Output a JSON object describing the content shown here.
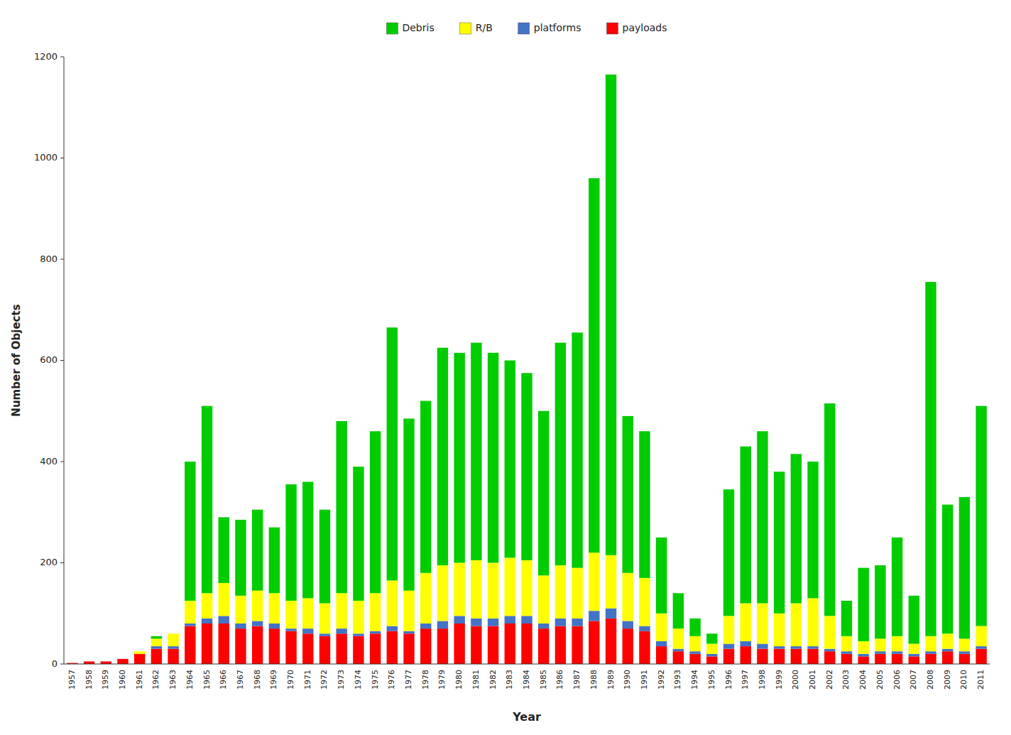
{
  "chart_data": {
    "type": "bar",
    "stacked": true,
    "xlabel": "Year",
    "ylabel": "Number of Objects",
    "categories": [
      "1957",
      "1958",
      "1959",
      "1960",
      "1961",
      "1962",
      "1963",
      "1964",
      "1965",
      "1966",
      "1967",
      "1968",
      "1969",
      "1970",
      "1971",
      "1972",
      "1973",
      "1974",
      "1975",
      "1976",
      "1977",
      "1978",
      "1979",
      "1980",
      "1981",
      "1982",
      "1983",
      "1984",
      "1985",
      "1986",
      "1987",
      "1988",
      "1989",
      "1990",
      "1991",
      "1992",
      "1993",
      "1994",
      "1995",
      "1996",
      "1997",
      "1998",
      "1999",
      "2000",
      "2001",
      "2002",
      "2003",
      "2004",
      "2005",
      "2006",
      "2007",
      "2008",
      "2009",
      "2010",
      "2011"
    ],
    "series": [
      {
        "name": "payloads",
        "color": "#FF0000",
        "values": [
          2,
          5,
          5,
          10,
          20,
          30,
          30,
          75,
          80,
          80,
          70,
          75,
          70,
          65,
          60,
          55,
          60,
          55,
          60,
          65,
          60,
          70,
          70,
          80,
          75,
          75,
          80,
          80,
          70,
          75,
          75,
          85,
          90,
          70,
          65,
          35,
          25,
          20,
          15,
          30,
          35,
          30,
          30,
          30,
          30,
          25,
          20,
          15,
          20,
          20,
          15,
          20,
          25,
          20,
          30
        ]
      },
      {
        "name": "platforms",
        "color": "#4472C4",
        "values": [
          0,
          0,
          0,
          0,
          0,
          5,
          5,
          5,
          10,
          15,
          10,
          10,
          10,
          5,
          10,
          5,
          10,
          5,
          5,
          10,
          5,
          10,
          15,
          15,
          15,
          15,
          15,
          15,
          10,
          15,
          15,
          20,
          20,
          15,
          10,
          10,
          5,
          5,
          5,
          10,
          10,
          10,
          5,
          5,
          5,
          5,
          5,
          5,
          5,
          5,
          5,
          5,
          5,
          5,
          5
        ]
      },
      {
        "name": "R/B",
        "color": "#FFFF00",
        "values": [
          0,
          0,
          0,
          0,
          5,
          15,
          25,
          45,
          50,
          65,
          55,
          60,
          60,
          55,
          60,
          60,
          70,
          65,
          75,
          90,
          80,
          100,
          110,
          105,
          115,
          110,
          115,
          110,
          95,
          105,
          100,
          115,
          105,
          95,
          95,
          55,
          40,
          30,
          20,
          55,
          75,
          80,
          65,
          85,
          95,
          65,
          30,
          25,
          25,
          30,
          20,
          30,
          30,
          25,
          40
        ]
      },
      {
        "name": "Debris",
        "color": "#00CC00",
        "values": [
          0,
          0,
          0,
          0,
          0,
          5,
          0,
          275,
          370,
          130,
          150,
          160,
          130,
          230,
          230,
          185,
          340,
          265,
          320,
          500,
          340,
          340,
          430,
          415,
          430,
          415,
          390,
          370,
          325,
          440,
          465,
          740,
          950,
          310,
          290,
          150,
          70,
          35,
          20,
          250,
          310,
          340,
          280,
          295,
          270,
          420,
          70,
          145,
          145,
          195,
          95,
          700,
          255,
          280,
          435
        ]
      }
    ],
    "ylim": [
      0,
      1200
    ],
    "yticks": [
      0,
      200,
      400,
      600,
      800,
      1000,
      1200
    ],
    "grid": false,
    "legend": "top"
  }
}
